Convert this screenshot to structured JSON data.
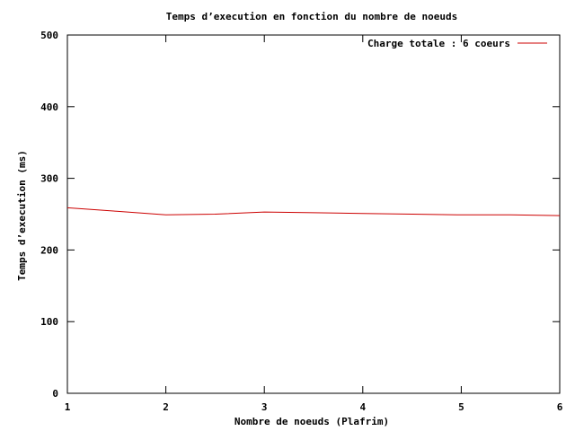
{
  "chart_data": {
    "type": "line",
    "title": "Temps d’execution en fonction du nombre de noeuds",
    "xlabel": "Nombre de noeuds (Plafrim)",
    "ylabel": "Temps d’execution (ms)",
    "xlim": [
      1,
      6
    ],
    "ylim": [
      0,
      500
    ],
    "xticks": [
      "1",
      "2",
      "3",
      "4",
      "5",
      "6"
    ],
    "yticks": [
      "0",
      "100",
      "200",
      "300",
      "400",
      "500"
    ],
    "grid": false,
    "legend_position": "top-right",
    "series": [
      {
        "name": "Charge totale : 6 coeurs",
        "color": "#cc0000",
        "x": [
          1,
          1.5,
          2,
          2.5,
          3,
          3.5,
          4,
          4.5,
          5,
          5.5,
          6
        ],
        "y": [
          259,
          254,
          249,
          250,
          253,
          252,
          251,
          250,
          249,
          249,
          248
        ]
      }
    ]
  }
}
